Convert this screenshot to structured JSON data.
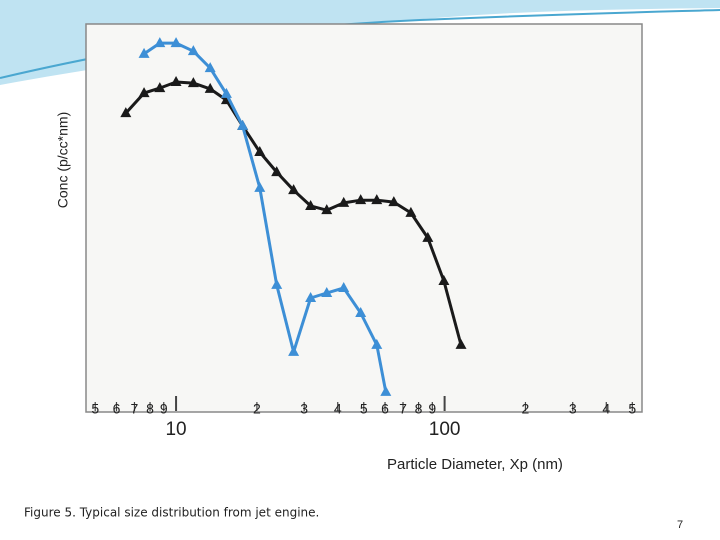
{
  "chart_data": {
    "type": "line",
    "x_label": "Particle Diameter, Xp  (nm)",
    "y_label": "Conc  (p/cc*nm)",
    "xscale": "log",
    "xlim": [
      4.7,
      525
    ],
    "ylim": [
      0,
      100
    ],
    "xticks": [
      5,
      6,
      7,
      8,
      9,
      10,
      {
        "value": 20,
        "label": "2"
      },
      {
        "value": 30,
        "label": "3"
      },
      {
        "value": 40,
        "label": "4"
      },
      {
        "value": 50,
        "label": "5"
      },
      {
        "value": 60,
        "label": "6"
      },
      {
        "value": 70,
        "label": "7"
      },
      {
        "value": 80,
        "label": "8"
      },
      {
        "value": 90,
        "label": "9"
      },
      100,
      {
        "value": 200,
        "label": "2"
      },
      {
        "value": 300,
        "label": "3"
      },
      {
        "value": 400,
        "label": "4"
      },
      {
        "value": 500,
        "label": "5"
      }
    ],
    "series": [
      {
        "color": "#1a1a1a",
        "x": [
          6.5,
          7.6,
          8.7,
          10.0,
          11.6,
          13.4,
          15.4,
          17.7,
          20.5,
          23.7,
          27.4,
          31.7,
          36.4,
          42.1,
          48.7,
          55.9,
          64.7,
          74.9,
          86.6,
          99.4,
          115.1
        ],
        "values": [
          77.1,
          82.3,
          83.6,
          85.2,
          84.9,
          83.4,
          80.5,
          73.8,
          67.0,
          61.8,
          57.1,
          53.0,
          51.9,
          53.8,
          54.5,
          54.5,
          54.0,
          51.2,
          44.7,
          33.5,
          16.9
        ]
      },
      {
        "color": "#3d8fd6",
        "x": [
          7.6,
          8.7,
          10.0,
          11.6,
          13.4,
          15.4,
          17.7,
          20.5,
          23.7,
          27.4,
          31.7,
          36.4,
          42.1,
          48.7,
          55.9,
          60.4
        ],
        "values": [
          92.5,
          95.3,
          95.3,
          93.2,
          88.8,
          82.1,
          73.8,
          57.7,
          32.5,
          15.1,
          29.1,
          30.4,
          31.7,
          25.2,
          16.9,
          4.7
        ]
      }
    ]
  },
  "caption": "Figure 5.  Typical size distribution from jet engine.",
  "page_number": "7"
}
